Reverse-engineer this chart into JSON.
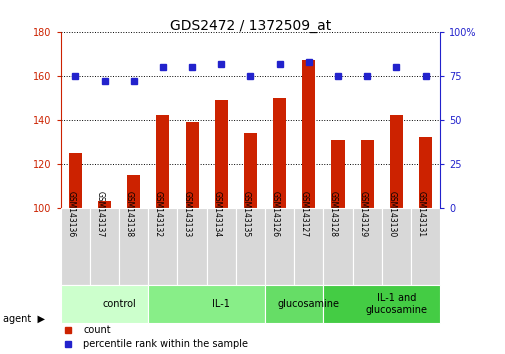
{
  "title": "GDS2472 / 1372509_at",
  "samples": [
    "GSM143136",
    "GSM143137",
    "GSM143138",
    "GSM143132",
    "GSM143133",
    "GSM143134",
    "GSM143135",
    "GSM143126",
    "GSM143127",
    "GSM143128",
    "GSM143129",
    "GSM143130",
    "GSM143131"
  ],
  "counts": [
    125,
    103,
    115,
    142,
    139,
    149,
    134,
    150,
    167,
    131,
    131,
    142,
    132
  ],
  "percentiles": [
    75,
    72,
    72,
    80,
    80,
    82,
    75,
    82,
    83,
    75,
    75,
    80,
    75
  ],
  "bar_color": "#cc2200",
  "dot_color": "#2222cc",
  "ylim_left": [
    100,
    180
  ],
  "ylim_right": [
    0,
    100
  ],
  "yticks_left": [
    100,
    120,
    140,
    160,
    180
  ],
  "yticks_right": [
    0,
    25,
    50,
    75,
    100
  ],
  "groups": [
    {
      "label": "control",
      "start": 0,
      "end": 3,
      "color": "#ccffcc"
    },
    {
      "label": "IL-1",
      "start": 3,
      "end": 7,
      "color": "#88ee88"
    },
    {
      "label": "glucosamine",
      "start": 7,
      "end": 9,
      "color": "#66dd66"
    },
    {
      "label": "IL-1 and\nglucosamine",
      "start": 9,
      "end": 13,
      "color": "#44cc44"
    }
  ],
  "legend_count_label": "count",
  "legend_pct_label": "percentile rank within the sample",
  "title_fontsize": 10,
  "tick_fontsize": 7,
  "bar_width": 0.45
}
